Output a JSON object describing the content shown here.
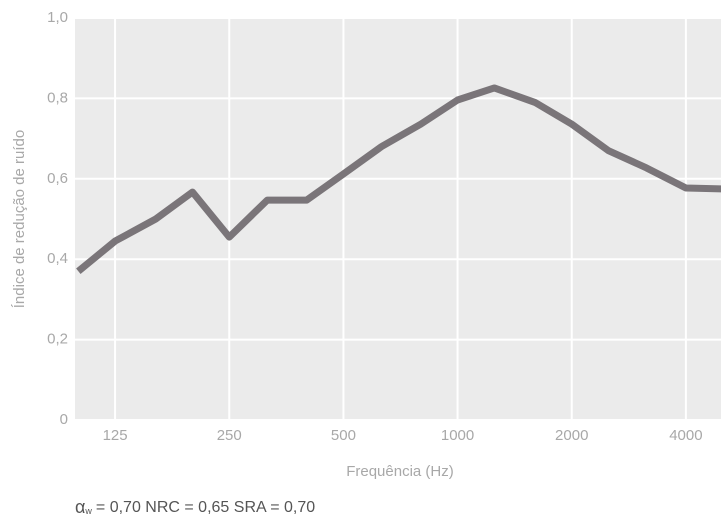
{
  "chart_data": {
    "type": "line",
    "x_label": "Frequência (Hz)",
    "y_label": "Índice de redução de ruído",
    "x": [
      100,
      125,
      160,
      200,
      250,
      315,
      400,
      500,
      630,
      800,
      1000,
      1250,
      1600,
      2000,
      2500,
      3150,
      4000,
      5000
    ],
    "series": [
      {
        "color": "#7a7579",
        "values": [
          0.37,
          0.445,
          0.5,
          0.567,
          0.455,
          0.547,
          0.547,
          0.612,
          0.68,
          0.736,
          0.796,
          0.826,
          0.79,
          0.736,
          0.67,
          0.627,
          0.577,
          0.575
        ]
      }
    ],
    "xlim": [
      98,
      4950
    ],
    "x_log": true,
    "xticks": [
      125,
      250,
      500,
      1000,
      2000,
      4000
    ],
    "ylim": [
      0,
      1
    ],
    "yticks": [
      0,
      {
        "value": 0.2,
        "label": "0,2"
      },
      {
        "value": 0.4,
        "label": "0,4"
      },
      {
        "value": 0.6,
        "label": "0,6"
      },
      {
        "value": 0.8,
        "label": "0,8"
      },
      {
        "value": 1,
        "label": "1,0"
      }
    ],
    "grid": true,
    "annotation": {
      "symbol": "α",
      "subscript": "w",
      "text": "= 0,70  NRC = 0,65  SRA = 0,70"
    }
  }
}
